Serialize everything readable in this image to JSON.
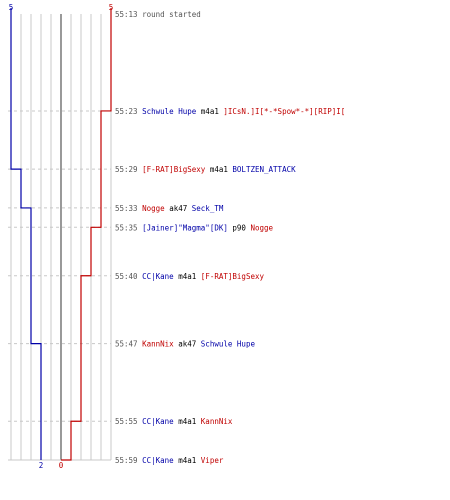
{
  "chart_data": {
    "type": "line",
    "colors": {
      "blue": "#0000a8",
      "red": "#c00000",
      "neutral": "#000000",
      "time": "#555555"
    },
    "series": [
      {
        "team": "blue",
        "start": 5,
        "end": 2,
        "start_label": "5",
        "end_label": "2"
      },
      {
        "team": "red",
        "start": 5,
        "end": 0,
        "start_label": "5",
        "end_label": "0"
      }
    ],
    "y_range_seconds": [
      793,
      839
    ],
    "events": [
      {
        "time": "55:13",
        "t": 793,
        "text": "round started",
        "kind": "start"
      },
      {
        "time": "55:23",
        "t": 803,
        "killer": "Schwule Hupe",
        "killer_team": "blue",
        "weapon": "m4a1",
        "victim": "]ICsN.]I[*-*Spow*-*][RIP]I[",
        "victim_team": "red",
        "red_after": 4,
        "blue_after": 5
      },
      {
        "time": "55:29",
        "t": 809,
        "killer": "[F-RAT]BigSexy",
        "killer_team": "red",
        "weapon": "m4a1",
        "victim": "BOLTZEN_ATTACK",
        "victim_team": "blue",
        "red_after": 4,
        "blue_after": 4
      },
      {
        "time": "55:33",
        "t": 813,
        "killer": "Nogge",
        "killer_team": "red",
        "weapon": "ak47",
        "victim": "Seck_TM",
        "victim_team": "blue",
        "red_after": 4,
        "blue_after": 3
      },
      {
        "time": "55:35",
        "t": 815,
        "killer": "[Jainer]\"Magma\"[DK]",
        "killer_team": "blue",
        "weapon": "p90",
        "victim": "Nogge",
        "victim_team": "red",
        "red_after": 3,
        "blue_after": 3
      },
      {
        "time": "55:40",
        "t": 820,
        "killer": "CC|Kane",
        "killer_team": "blue",
        "weapon": "m4a1",
        "victim": "[F-RAT]BigSexy",
        "victim_team": "red",
        "red_after": 2,
        "blue_after": 3
      },
      {
        "time": "55:47",
        "t": 827,
        "killer": "KannNix",
        "killer_team": "red",
        "weapon": "ak47",
        "victim": "Schwule Hupe",
        "victim_team": "blue",
        "red_after": 2,
        "blue_after": 2
      },
      {
        "time": "55:55",
        "t": 835,
        "killer": "CC|Kane",
        "killer_team": "blue",
        "weapon": "m4a1",
        "victim": "KannNix",
        "victim_team": "red",
        "red_after": 1,
        "blue_after": 2
      },
      {
        "time": "55:59",
        "t": 839,
        "killer": "CC|Kane",
        "killer_team": "blue",
        "weapon": "m4a1",
        "victim": "Viper",
        "victim_team": "red",
        "red_after": 0,
        "blue_after": 2
      }
    ]
  }
}
